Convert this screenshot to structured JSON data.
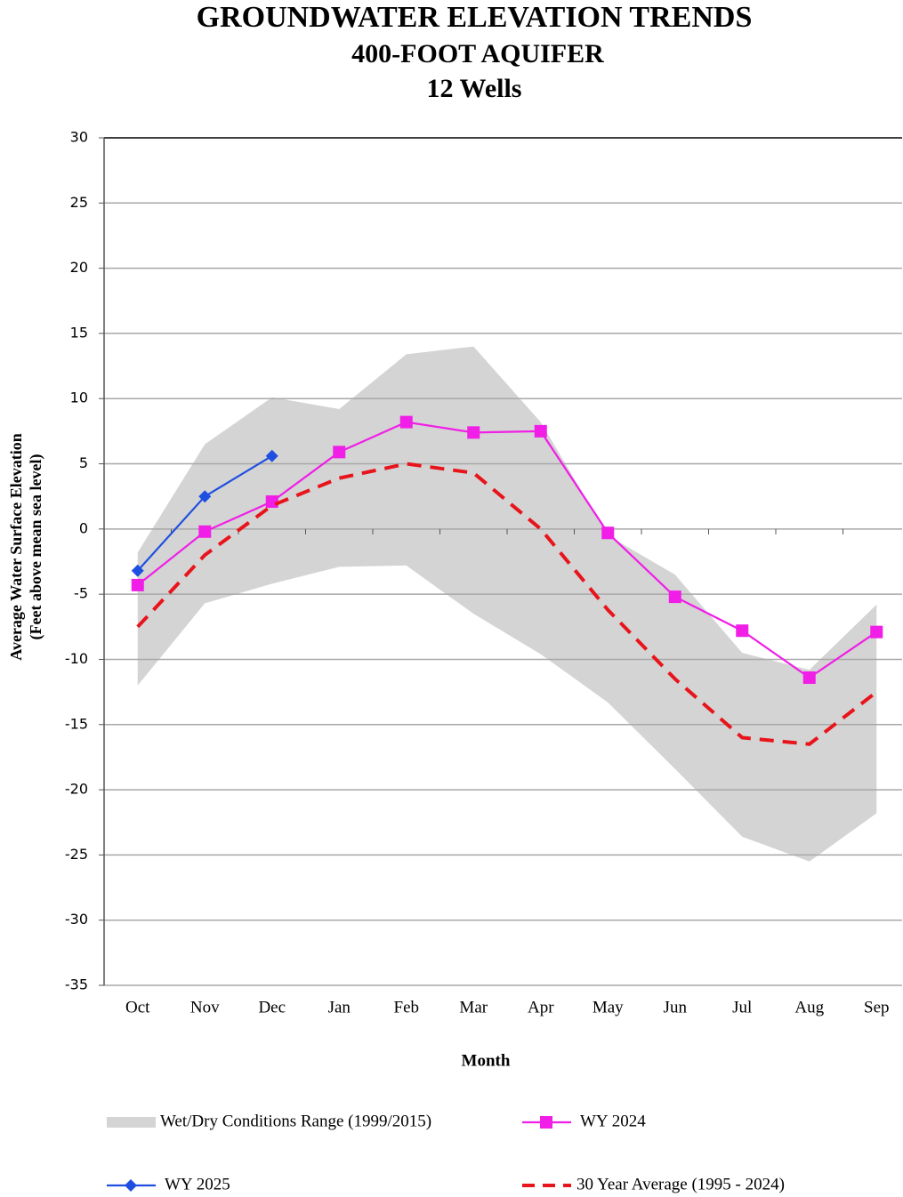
{
  "chart_data": {
    "type": "line",
    "title": "GROUNDWATER ELEVATION TRENDS",
    "subtitles": [
      "400-FOOT AQUIFER",
      "12 Wells"
    ],
    "y_label": [
      "Average Water Surface Elevation",
      "(Feet above mean sea level)"
    ],
    "x_label": "Month",
    "categories": [
      "Oct",
      "Nov",
      "Dec",
      "Jan",
      "Feb",
      "Mar",
      "Apr",
      "May",
      "Jun",
      "Jul",
      "Aug",
      "Sep"
    ],
    "ylim": [
      -35,
      30
    ],
    "yticks": [
      -35,
      -30,
      -25,
      -20,
      -15,
      -10,
      -5,
      0,
      5,
      10,
      15,
      20,
      25,
      30
    ],
    "grid": true,
    "range": {
      "name": "Wet/Dry Conditions Range (1999/2015)",
      "color": "#d4d4d4",
      "upper": [
        -1.8,
        6.5,
        10.1,
        9.2,
        13.4,
        14,
        8.2,
        -0.5,
        -3.5,
        -9.5,
        -10.8,
        -5.8
      ],
      "lower": [
        -12,
        -5.7,
        -4.2,
        -2.9,
        -2.8,
        -6.5,
        -9.6,
        -13.3,
        -18.4,
        -23.6,
        -25.5,
        -21.8
      ]
    },
    "series": [
      {
        "name": "WY 2024",
        "color": "#f01ee6",
        "marker": "square",
        "values": [
          -4.3,
          -0.2,
          2.1,
          5.9,
          8.2,
          7.4,
          7.5,
          -0.3,
          -5.2,
          -7.8,
          -11.4,
          -7.9
        ]
      },
      {
        "name": "WY 2025",
        "color": "#1f4fe0",
        "marker": "diamond",
        "values": [
          -3.2,
          2.5,
          5.6,
          null,
          null,
          null,
          null,
          null,
          null,
          null,
          null,
          null
        ]
      },
      {
        "name": "30 Year Average (1995 - 2024)",
        "color": "#e8141b",
        "dashed": true,
        "values": [
          -7.5,
          -2,
          1.8,
          3.9,
          5,
          4.3,
          0,
          -6.2,
          -11.5,
          -16,
          -16.5,
          -12.5
        ]
      }
    ]
  }
}
